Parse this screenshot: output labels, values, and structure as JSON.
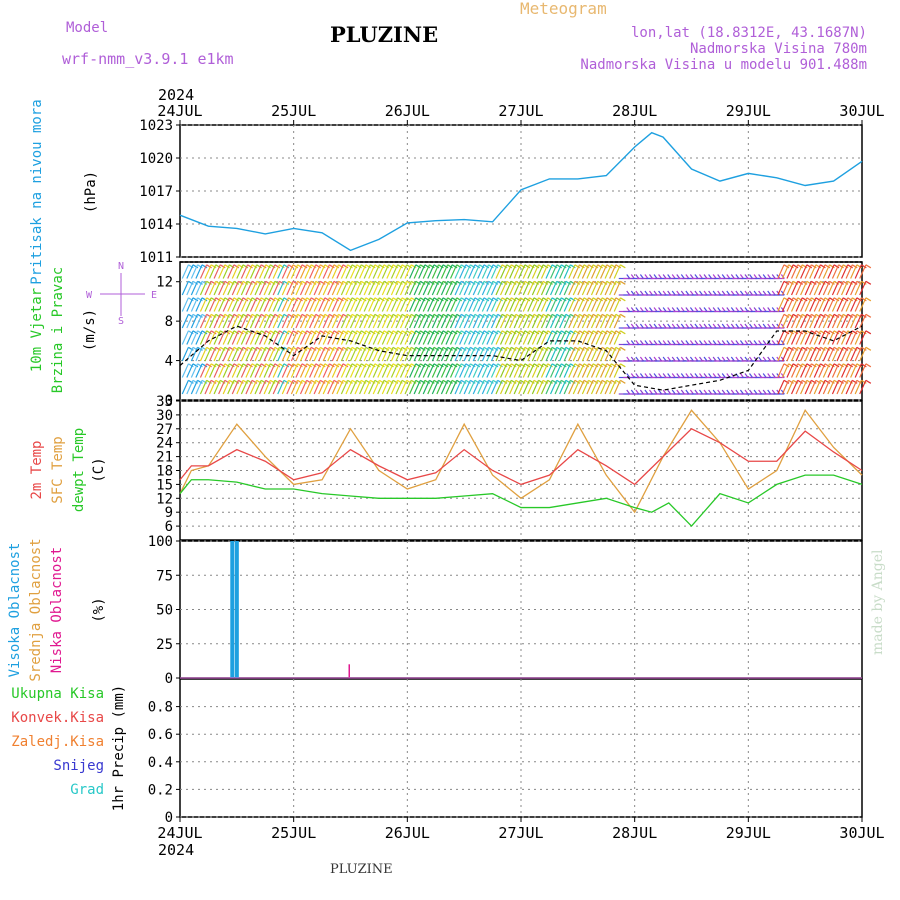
{
  "header": {
    "model_label": "Model",
    "model_name": "wrf-nmm_v3.9.1  e1km",
    "station": "PLUZINE",
    "title": "Meteogram",
    "coords": "lon,lat (18.8312E, 43.1687N)",
    "elevation": "Nadmorska Visina 780m",
    "model_elevation": "Nadmorska Visina u modelu 901.488m"
  },
  "footer": {
    "station": "PLUZINE",
    "credit": "made by Angel"
  },
  "colors": {
    "pressure": "#1ea0e0",
    "temp2m": "#e84848",
    "sfc_temp": "#e0a040",
    "dewpoint": "#28c828",
    "cloud_high": "#1ea0e0",
    "cloud_mid": "#e0a040",
    "cloud_low": "#e01890",
    "precip_total": "#28c828",
    "precip_conv": "#e84848",
    "precip_frz": "#f08030",
    "snow": "#3838d0",
    "hail": "#28c8c8"
  },
  "chart_data": [
    {
      "type": "line",
      "title": "Pritisak na nivou mora",
      "ylabel": "(hPa)",
      "ylim": [
        1011,
        1023
      ],
      "yticks": [
        1011,
        1014,
        1017,
        1020,
        1023
      ],
      "xlim": [
        0,
        6
      ],
      "x_year": "2024",
      "x_ticks": [
        "24JUL",
        "25JUL",
        "26JUL",
        "27JUL",
        "28JUL",
        "29JUL",
        "30JUL"
      ],
      "grid": true,
      "series": [
        {
          "name": "Pritisak na nivou mora",
          "x": [
            0,
            0.25,
            0.5,
            0.75,
            1,
            1.25,
            1.5,
            1.75,
            2,
            2.25,
            2.5,
            2.75,
            3,
            3.25,
            3.5,
            3.75,
            4,
            4.15,
            4.25,
            4.5,
            4.75,
            5,
            5.25,
            5.5,
            5.75,
            6
          ],
          "values": [
            1014.8,
            1013.8,
            1013.6,
            1013.1,
            1013.6,
            1013.2,
            1011.6,
            1012.6,
            1014.1,
            1014.3,
            1014.4,
            1014.2,
            1017.1,
            1018.1,
            1018.1,
            1018.4,
            1021.0,
            1022.3,
            1021.9,
            1019.0,
            1017.9,
            1018.6,
            1018.2,
            1017.5,
            1017.9,
            1019.7
          ]
        }
      ]
    },
    {
      "type": "line",
      "title": "10m Vjetar Brzina i Pravac",
      "ylabel": "(m/s)",
      "ylim": [
        0,
        14
      ],
      "yticks": [
        0,
        4,
        8,
        12
      ],
      "x_ticks": [
        "24JUL",
        "25JUL",
        "26JUL",
        "27JUL",
        "28JUL",
        "29JUL",
        "30JUL"
      ],
      "compass": [
        "N",
        "W",
        "E",
        "S"
      ],
      "grid": true,
      "series": [
        {
          "name": "Brzina",
          "x": [
            0,
            0.25,
            0.5,
            0.75,
            1,
            1.25,
            1.5,
            1.75,
            2,
            2.25,
            2.5,
            2.75,
            3,
            3.25,
            3.5,
            3.75,
            4,
            4.25,
            4.5,
            4.75,
            5,
            5.25,
            5.5,
            5.75,
            6
          ],
          "values": [
            3.5,
            6,
            7.5,
            6.5,
            4.5,
            6.5,
            6,
            5,
            4.5,
            4.5,
            4.5,
            4.5,
            4,
            6,
            6,
            5,
            1.5,
            1,
            1.5,
            2,
            3,
            7,
            7,
            6,
            7.5
          ]
        }
      ]
    },
    {
      "type": "line",
      "ylabel": "(C)",
      "ylim": [
        3,
        33
      ],
      "yticks": [
        6,
        9,
        12,
        15,
        18,
        21,
        24,
        27,
        30,
        33
      ],
      "x_ticks": [
        "24JUL",
        "25JUL",
        "26JUL",
        "27JUL",
        "28JUL",
        "29JUL",
        "30JUL"
      ],
      "grid": true,
      "series": [
        {
          "name": "2m Temp",
          "x": [
            0,
            0.1,
            0.25,
            0.5,
            0.75,
            1,
            1.25,
            1.5,
            1.75,
            2,
            2.25,
            2.5,
            2.75,
            3,
            3.25,
            3.5,
            3.75,
            4,
            4.25,
            4.5,
            4.75,
            5,
            5.25,
            5.5,
            5.75,
            6
          ],
          "values": [
            16,
            19,
            19,
            22.5,
            20,
            16,
            17.5,
            22.5,
            19,
            16,
            17.5,
            22.5,
            18,
            15,
            17,
            22.5,
            19,
            15,
            21,
            27,
            24,
            20,
            20,
            26.5,
            22,
            18
          ]
        },
        {
          "name": "SFC Temp",
          "x": [
            0,
            0.1,
            0.25,
            0.5,
            0.75,
            1,
            1.25,
            1.5,
            1.75,
            2,
            2.25,
            2.5,
            2.75,
            3,
            3.25,
            3.5,
            3.75,
            4,
            4.25,
            4.5,
            4.75,
            5,
            5.25,
            5.5,
            5.75,
            6
          ],
          "values": [
            13,
            18,
            19,
            28,
            21,
            15,
            16,
            27,
            18,
            14,
            16,
            28,
            17,
            12,
            16,
            28,
            17,
            9,
            21,
            31,
            24,
            14,
            18,
            31,
            23,
            17
          ]
        },
        {
          "name": "dewpt Temp",
          "x": [
            0,
            0.1,
            0.25,
            0.5,
            0.75,
            1,
            1.25,
            1.5,
            1.75,
            2,
            2.25,
            2.5,
            2.75,
            3,
            3.25,
            3.5,
            3.75,
            4,
            4.15,
            4.3,
            4.5,
            4.75,
            5,
            5.25,
            5.5,
            5.75,
            6
          ],
          "values": [
            13,
            16,
            16,
            15.5,
            14,
            14,
            13,
            12.5,
            12,
            12,
            12,
            12.5,
            13,
            10,
            10,
            11,
            12,
            10,
            9,
            11,
            6,
            13,
            11,
            15,
            17,
            17,
            15
          ]
        }
      ]
    },
    {
      "type": "bar",
      "ylabel": "(%)",
      "ylim": [
        0,
        100
      ],
      "yticks": [
        0,
        25,
        50,
        75,
        100
      ],
      "x_ticks": [
        "24JUL",
        "25JUL",
        "26JUL",
        "27JUL",
        "28JUL",
        "29JUL",
        "30JUL"
      ],
      "grid": true,
      "series": [
        {
          "name": "Visoka Oblacnost",
          "x": [
            0.46,
            0.5
          ],
          "values": [
            100,
            100
          ]
        },
        {
          "name": "Srednja Oblacnost",
          "x": [],
          "values": []
        },
        {
          "name": "Niska Oblacnost",
          "x": [
            1.5
          ],
          "values": [
            10
          ]
        }
      ]
    },
    {
      "type": "bar",
      "ylabel": "1hr Precip (mm)",
      "ylim": [
        0,
        1
      ],
      "yticks": [
        0,
        0.2,
        0.4,
        0.6,
        0.8
      ],
      "x_ticks": [
        "24JUL",
        "25JUL",
        "26JUL",
        "27JUL",
        "28JUL",
        "29JUL",
        "30JUL"
      ],
      "x_year": "2024",
      "grid": true,
      "series": [
        {
          "name": "Ukupna Kisa",
          "x": [],
          "values": []
        },
        {
          "name": "Konvek.Kisa",
          "x": [],
          "values": []
        },
        {
          "name": "Zaledj.Kisa",
          "x": [],
          "values": []
        },
        {
          "name": "Snijeg",
          "x": [],
          "values": []
        },
        {
          "name": "Grad",
          "x": [],
          "values": []
        }
      ]
    }
  ]
}
